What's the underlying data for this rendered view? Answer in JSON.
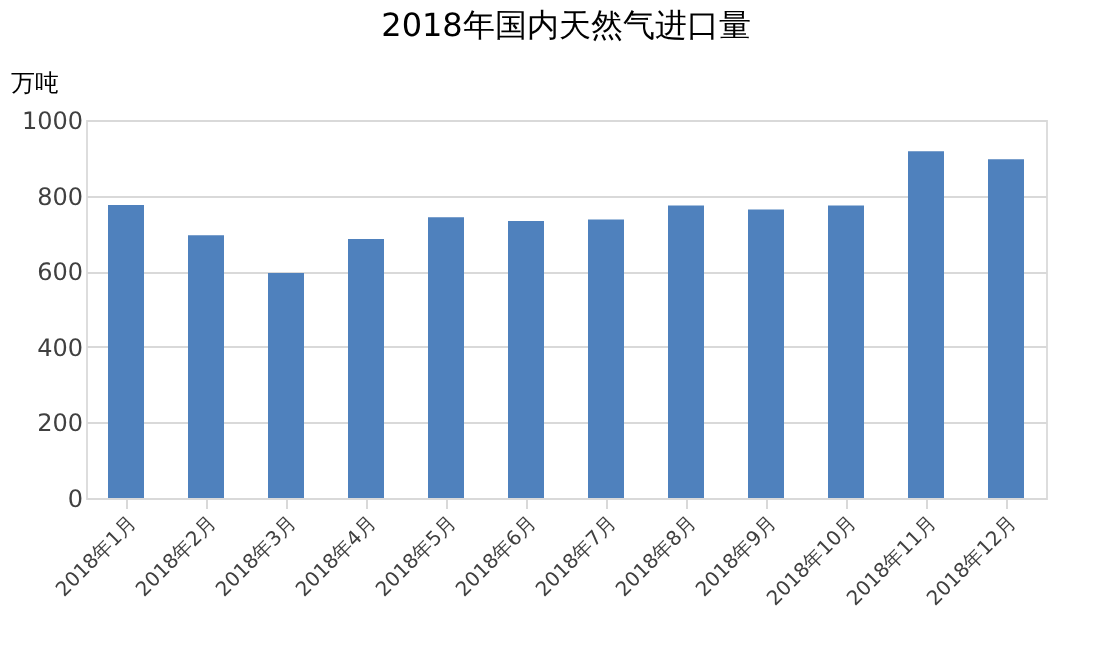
{
  "chart_data": {
    "type": "bar",
    "title": "2018年国内天然气进口量",
    "ylabel": "万吨",
    "categories": [
      "2018年1月",
      "2018年2月",
      "2018年3月",
      "2018年4月",
      "2018年5月",
      "2018年6月",
      "2018年7月",
      "2018年8月",
      "2018年9月",
      "2018年10月",
      "2018年11月",
      "2018年12月"
    ],
    "values": [
      775,
      695,
      595,
      685,
      743,
      733,
      737,
      774,
      763,
      774,
      917,
      896
    ],
    "color": "#4f81bd",
    "ylim": [
      0,
      1000
    ],
    "yticks": [
      0,
      200,
      400,
      600,
      800,
      1000
    ],
    "grid": "y"
  }
}
